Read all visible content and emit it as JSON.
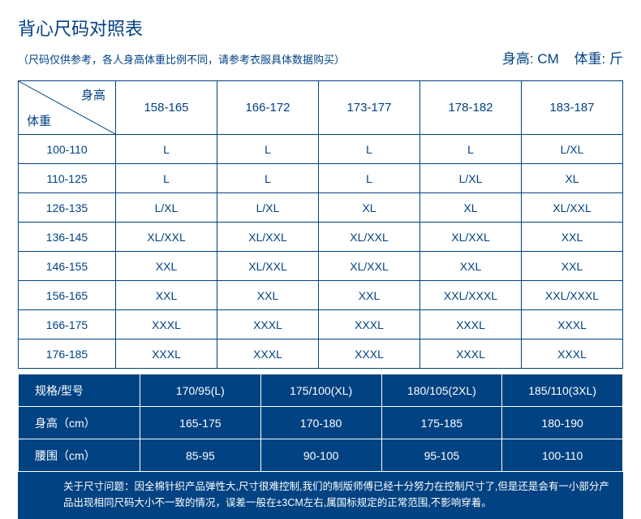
{
  "title": "背心尺码对照表",
  "subtitle": "（尺码仅供参考，各人身高体重比例不同，请参考衣服具体数据购买）",
  "units": {
    "height": "身高: CM",
    "weight": "体重: 斤"
  },
  "colors": {
    "primary": "#004282",
    "bg": "#ffffff",
    "tableBorder": "#004282",
    "specBg": "#004282",
    "specText": "#ffffff"
  },
  "sizeTable": {
    "diag": {
      "top": "身高",
      "bottom": "体重"
    },
    "heightCols": [
      "158-165",
      "166-172",
      "173-177",
      "178-182",
      "183-187"
    ],
    "weightRows": [
      "100-110",
      "110-125",
      "126-135",
      "136-145",
      "146-155",
      "156-165",
      "166-175",
      "176-185"
    ],
    "cells": [
      [
        "L",
        "L",
        "L",
        "L",
        "L/XL"
      ],
      [
        "L",
        "L",
        "L",
        "L/XL",
        "XL"
      ],
      [
        "L/XL",
        "L/XL",
        "XL",
        "XL",
        "XL/XXL"
      ],
      [
        "XL/XXL",
        "XL/XXL",
        "XL/XXL",
        "XL/XXL",
        "XXL"
      ],
      [
        "XXL",
        "XL/XXL",
        "XL/XXL",
        "XXL",
        "XXL"
      ],
      [
        "XXL",
        "XXL",
        "XXL",
        "XXL/XXXL",
        "XXL/XXXL"
      ],
      [
        "XXXL",
        "XXXL",
        "XXXL",
        "XXXL",
        "XXXL"
      ],
      [
        "XXXL",
        "XXXL",
        "XXXL",
        "XXXL",
        "XXXL"
      ]
    ]
  },
  "specTable": {
    "rowLabels": [
      "规格/型号",
      "身高（cm）",
      "腰围（cm）"
    ],
    "rows": [
      [
        "170/95(L)",
        "175/100(XL)",
        "180/105(2XL)",
        "185/110(3XL)"
      ],
      [
        "165-175",
        "170-180",
        "175-185",
        "180-190"
      ],
      [
        "85-95",
        "90-100",
        "95-105",
        "100-110"
      ]
    ]
  },
  "note": "关于尺寸问题：因全棉针织产品弹性大,尺寸很难控制,我们的制版师傅已经十分努力在控制尺寸了,但是还是会有一小部分产品出现相同尺码大小不一致的情况，误差一般在±3CM左右,属国标规定的正常范围,不影响穿着。"
}
